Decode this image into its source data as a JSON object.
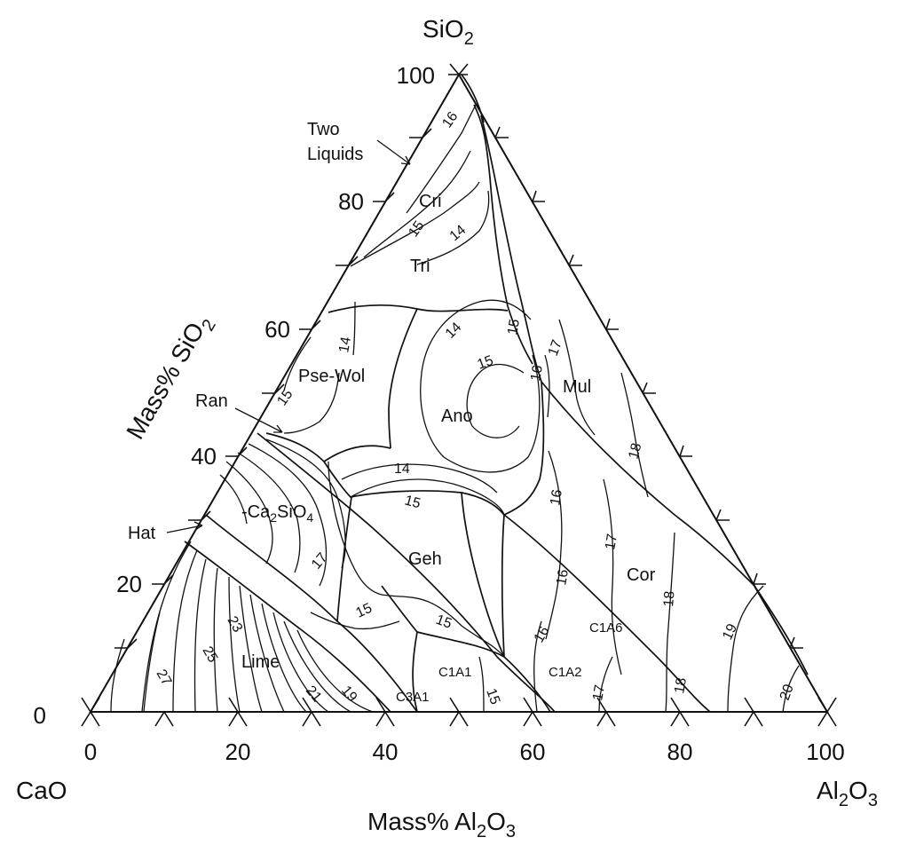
{
  "title_vertex": {
    "top": "SiO",
    "top_sub": "2",
    "left": "CaO",
    "right_main": "Al",
    "right_sub1": "2",
    "right_mid": "O",
    "right_sub2": "3"
  },
  "axes": {
    "left_label": "Mass% SiO",
    "left_label_sub": "2",
    "bottom_label": "Mass% Al",
    "bottom_label_sub1": "2",
    "bottom_label_mid": "O",
    "bottom_label_sub2": "3",
    "left_ticks": [
      "0",
      "20",
      "40",
      "60",
      "80",
      "100"
    ],
    "bottom_ticks": [
      "0",
      "20",
      "40",
      "60",
      "80",
      "100"
    ]
  },
  "phases": {
    "two_liquids_1": "Two",
    "two_liquids_2": "Liquids",
    "cri": "Cri",
    "tri": "Tri",
    "pse_wol": "Pse-Wol",
    "ran": "Ran",
    "ano": "Ano",
    "mul": "Mul",
    "ca2sio4_prefix": "-Ca",
    "ca2sio4_sub": "2",
    "ca2sio4_suffix": "SiO",
    "ca2sio4_sub2": "4",
    "hat": "Hat",
    "geh": "Geh",
    "cor": "Cor",
    "lime": "Lime",
    "c1a6": "C1A6",
    "c1a1": "C1A1",
    "c1a2": "C1A2",
    "c3a1": "C3A1"
  },
  "isotherms": {
    "i16a": "16",
    "i15a": "15",
    "i14a": "14",
    "i14b": "14",
    "i15b": "15",
    "i15c": "15",
    "i16b": "16",
    "i17a": "17",
    "i14c": "14",
    "i15d": "15",
    "i16c": "16",
    "i17b": "17",
    "i18a": "18",
    "i16d": "16",
    "i17c": "17",
    "i15e": "15",
    "i15f": "15",
    "i16e": "16",
    "i18b": "18",
    "i19": "19",
    "i20": "20",
    "i17d": "17",
    "i18c": "18",
    "i15g": "15",
    "i23": "23",
    "i25": "25",
    "i27": "27",
    "i21": "21",
    "i19b": "19",
    "i16f": "16"
  },
  "colors": {
    "line": "#111111",
    "background": "#ffffff"
  }
}
